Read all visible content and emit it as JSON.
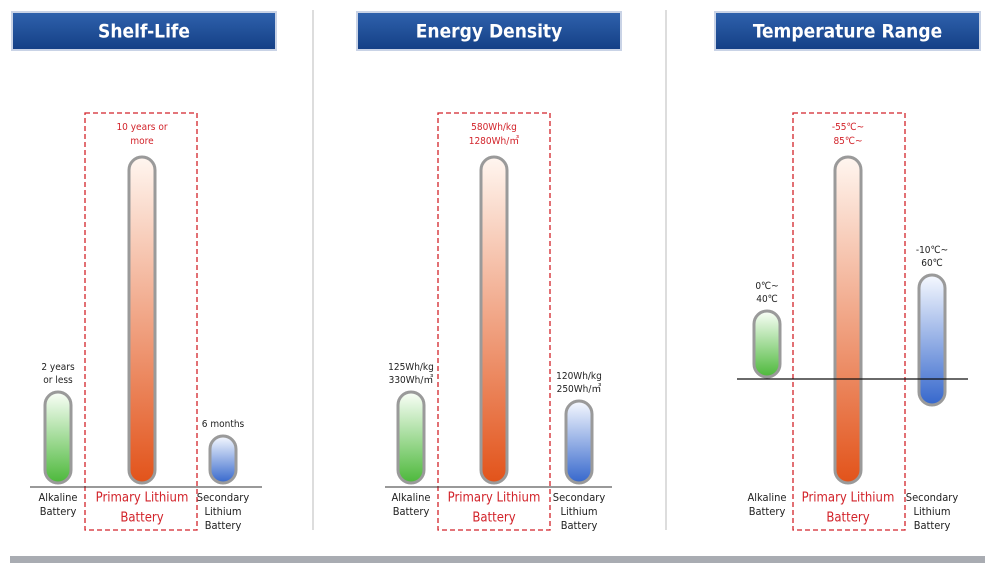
{
  "panels": [
    {
      "title": "Shelf-Life",
      "items": [
        {
          "label": [
            "Alkaline",
            "Battery"
          ],
          "value": [
            "2 years",
            "or less"
          ]
        },
        {
          "label": [
            "Primary Lithium",
            "Battery"
          ],
          "value": [
            "10 years or",
            "more"
          ]
        },
        {
          "label": [
            "Secondary",
            "Lithium",
            "Battery"
          ],
          "value": [
            "6 months"
          ]
        }
      ]
    },
    {
      "title": "Energy Density",
      "items": [
        {
          "label": [
            "Alkaline",
            "Battery"
          ],
          "value": [
            "125Wh/kg",
            "330Wh/㎥"
          ]
        },
        {
          "label": [
            "Primary Lithium",
            "Battery"
          ],
          "value": [
            "580Wh/kg",
            "1280Wh/㎥"
          ]
        },
        {
          "label": [
            "Secondary",
            "Lithium",
            "Battery"
          ],
          "value": [
            "120Wh/kg",
            "250Wh/㎥"
          ]
        }
      ]
    },
    {
      "title": "Temperature Range",
      "items": [
        {
          "label": [
            "Alkaline",
            "Battery"
          ],
          "value": [
            "0℃~",
            "40℃"
          ]
        },
        {
          "label": [
            "Primary Lithium",
            "Battery"
          ],
          "value": [
            "-55℃~",
            "85℃~"
          ]
        },
        {
          "label": [
            "Secondary",
            "Lithium",
            "Battery"
          ],
          "value": [
            "-10℃~",
            "60℃"
          ]
        }
      ]
    }
  ]
}
